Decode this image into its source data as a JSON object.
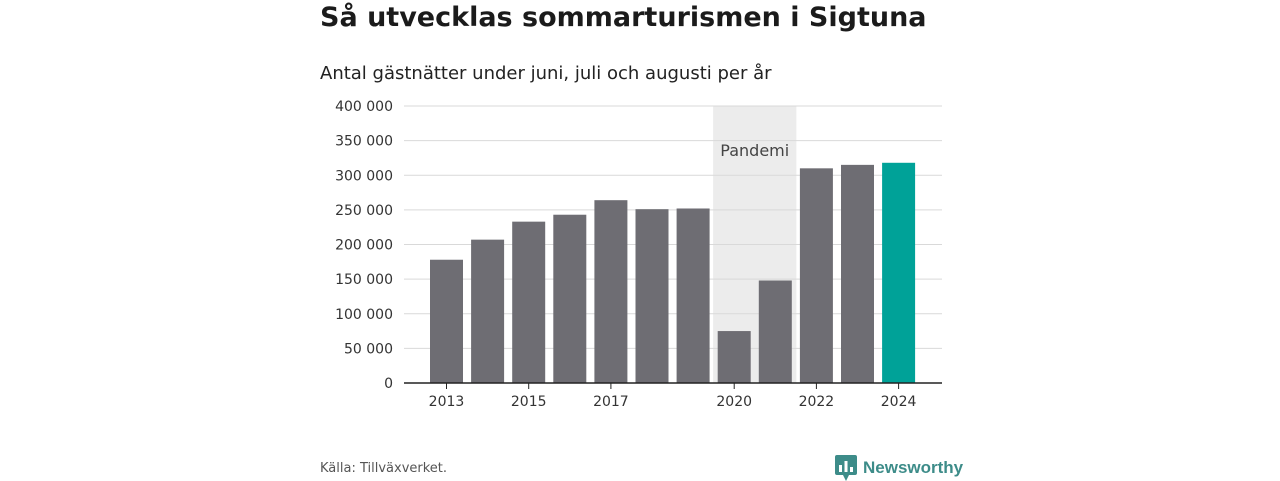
{
  "title": "Så utvecklas sommarturismen i Sigtuna",
  "subtitle": "Antal gästnätter under juni, juli och augusti per år",
  "source": "Källa: Tillväxverket.",
  "brand": "Newsworthy",
  "colors": {
    "bar": "#6e6d73",
    "highlight": "#00a298",
    "band": "#ececec",
    "grid": "#d9d9d9",
    "brand": "#3d8c89"
  },
  "chart_data": {
    "type": "bar",
    "categories": [
      "2013",
      "2014",
      "2015",
      "2016",
      "2017",
      "2018",
      "2019",
      "2020",
      "2021",
      "2022",
      "2023",
      "2024"
    ],
    "values": [
      178000,
      207000,
      233000,
      243000,
      264000,
      251000,
      252000,
      75000,
      148000,
      310000,
      315000,
      318000
    ],
    "x_tick_labels": [
      "2013",
      "2015",
      "2017",
      "2020",
      "2022",
      "2024"
    ],
    "y_ticks": [
      0,
      50000,
      100000,
      150000,
      200000,
      250000,
      300000,
      350000,
      400000
    ],
    "y_tick_labels": [
      "0",
      "50 000",
      "100 000",
      "150 000",
      "200 000",
      "250 000",
      "300 000",
      "350 000",
      "400 000"
    ],
    "ylim": [
      0,
      400000
    ],
    "highlight_category": "2024",
    "annotation": {
      "label": "Pandemi",
      "from": "2020",
      "to": "2021"
    },
    "grid": true,
    "legend": "none"
  }
}
